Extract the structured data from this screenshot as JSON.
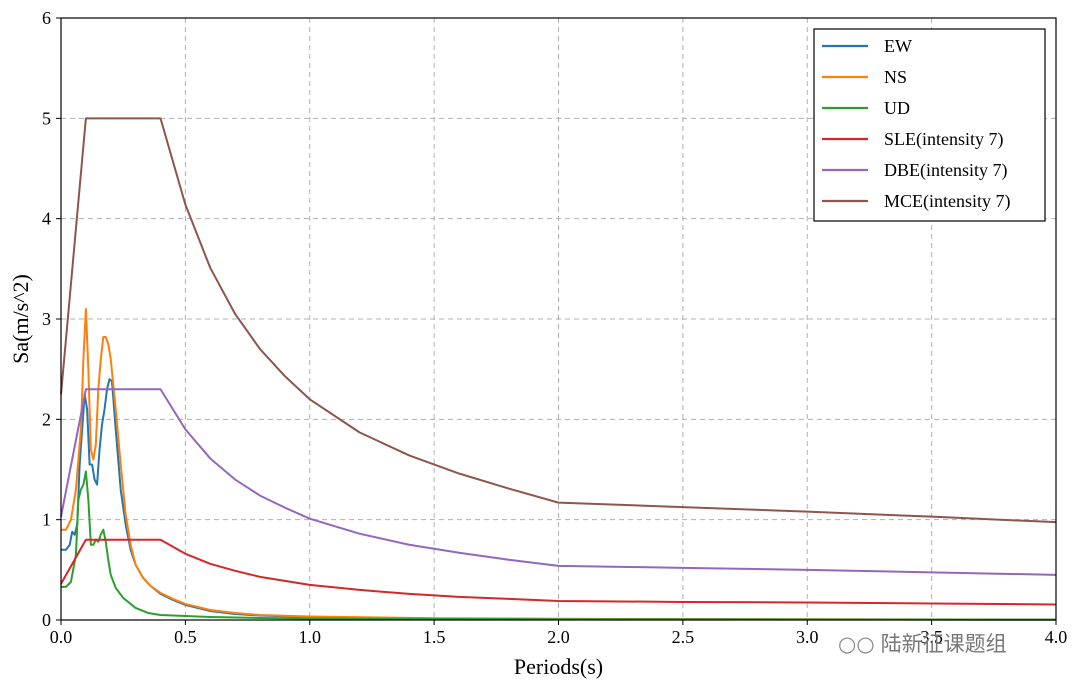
{
  "chart_data": {
    "type": "line",
    "title": "",
    "xlabel": "Periods(s)",
    "ylabel": "Sa(m/s^2)",
    "xlim": [
      0,
      4
    ],
    "ylim": [
      0,
      6
    ],
    "xticks": [
      "0.0",
      "0.5",
      "1.0",
      "1.5",
      "2.0",
      "2.5",
      "3.0",
      "3.5",
      "4.0"
    ],
    "yticks": [
      "0",
      "1",
      "2",
      "3",
      "4",
      "5",
      "6"
    ],
    "grid": true,
    "legend_position": "top-right",
    "series": [
      {
        "name": "EW",
        "color": "#1f77b4",
        "points": [
          [
            0,
            0.7
          ],
          [
            0.02,
            0.7
          ],
          [
            0.035,
            0.75
          ],
          [
            0.045,
            0.88
          ],
          [
            0.055,
            0.85
          ],
          [
            0.065,
            0.95
          ],
          [
            0.075,
            1.55
          ],
          [
            0.085,
            1.9
          ],
          [
            0.095,
            2.25
          ],
          [
            0.105,
            2.1
          ],
          [
            0.115,
            1.55
          ],
          [
            0.125,
            1.55
          ],
          [
            0.135,
            1.4
          ],
          [
            0.145,
            1.35
          ],
          [
            0.155,
            1.7
          ],
          [
            0.165,
            1.95
          ],
          [
            0.175,
            2.1
          ],
          [
            0.185,
            2.3
          ],
          [
            0.195,
            2.4
          ],
          [
            0.205,
            2.38
          ],
          [
            0.22,
            1.9
          ],
          [
            0.24,
            1.3
          ],
          [
            0.26,
            0.95
          ],
          [
            0.28,
            0.7
          ],
          [
            0.3,
            0.55
          ],
          [
            0.33,
            0.42
          ],
          [
            0.36,
            0.34
          ],
          [
            0.4,
            0.26
          ],
          [
            0.45,
            0.2
          ],
          [
            0.5,
            0.15
          ],
          [
            0.6,
            0.09
          ],
          [
            0.7,
            0.06
          ],
          [
            0.8,
            0.045
          ],
          [
            1.0,
            0.03
          ],
          [
            1.5,
            0.015
          ],
          [
            2.0,
            0.01
          ],
          [
            3.0,
            0.005
          ],
          [
            4.0,
            0.004
          ]
        ]
      },
      {
        "name": "NS",
        "color": "#ff7f0e",
        "points": [
          [
            0,
            0.9
          ],
          [
            0.02,
            0.9
          ],
          [
            0.04,
            1.0
          ],
          [
            0.06,
            1.3
          ],
          [
            0.08,
            1.9
          ],
          [
            0.09,
            2.6
          ],
          [
            0.1,
            3.1
          ],
          [
            0.11,
            2.5
          ],
          [
            0.12,
            1.7
          ],
          [
            0.13,
            1.6
          ],
          [
            0.14,
            1.75
          ],
          [
            0.15,
            2.3
          ],
          [
            0.16,
            2.6
          ],
          [
            0.17,
            2.82
          ],
          [
            0.18,
            2.82
          ],
          [
            0.19,
            2.75
          ],
          [
            0.2,
            2.6
          ],
          [
            0.22,
            2.1
          ],
          [
            0.24,
            1.55
          ],
          [
            0.26,
            1.05
          ],
          [
            0.28,
            0.75
          ],
          [
            0.3,
            0.55
          ],
          [
            0.33,
            0.42
          ],
          [
            0.36,
            0.34
          ],
          [
            0.4,
            0.27
          ],
          [
            0.45,
            0.21
          ],
          [
            0.5,
            0.16
          ],
          [
            0.6,
            0.1
          ],
          [
            0.7,
            0.07
          ],
          [
            0.8,
            0.05
          ],
          [
            1.0,
            0.035
          ],
          [
            1.5,
            0.018
          ],
          [
            2.0,
            0.012
          ],
          [
            3.0,
            0.007
          ],
          [
            4.0,
            0.005
          ]
        ]
      },
      {
        "name": "UD",
        "color": "#2ca02c",
        "points": [
          [
            0,
            0.33
          ],
          [
            0.02,
            0.33
          ],
          [
            0.04,
            0.38
          ],
          [
            0.06,
            0.65
          ],
          [
            0.07,
            1.2
          ],
          [
            0.08,
            1.3
          ],
          [
            0.09,
            1.35
          ],
          [
            0.1,
            1.48
          ],
          [
            0.11,
            1.2
          ],
          [
            0.12,
            0.75
          ],
          [
            0.13,
            0.75
          ],
          [
            0.14,
            0.8
          ],
          [
            0.15,
            0.78
          ],
          [
            0.16,
            0.85
          ],
          [
            0.17,
            0.9
          ],
          [
            0.18,
            0.78
          ],
          [
            0.19,
            0.6
          ],
          [
            0.2,
            0.45
          ],
          [
            0.22,
            0.32
          ],
          [
            0.25,
            0.22
          ],
          [
            0.3,
            0.12
          ],
          [
            0.35,
            0.07
          ],
          [
            0.4,
            0.05
          ],
          [
            0.5,
            0.04
          ],
          [
            0.6,
            0.03
          ],
          [
            0.8,
            0.02
          ],
          [
            1.0,
            0.015
          ],
          [
            2.0,
            0.008
          ],
          [
            4.0,
            0.004
          ]
        ]
      },
      {
        "name": "SLE(intensity 7)",
        "color": "#d62728",
        "points": [
          [
            0,
            0.36
          ],
          [
            0.1,
            0.8
          ],
          [
            0.4,
            0.8
          ],
          [
            0.5,
            0.66
          ],
          [
            0.6,
            0.56
          ],
          [
            0.7,
            0.49
          ],
          [
            0.8,
            0.43
          ],
          [
            0.9,
            0.39
          ],
          [
            1.0,
            0.35
          ],
          [
            1.2,
            0.3
          ],
          [
            1.4,
            0.26
          ],
          [
            1.6,
            0.23
          ],
          [
            1.8,
            0.21
          ],
          [
            2.0,
            0.19
          ],
          [
            2.5,
            0.18
          ],
          [
            3.0,
            0.175
          ],
          [
            3.5,
            0.165
          ],
          [
            4.0,
            0.155
          ]
        ]
      },
      {
        "name": "DBE(intensity 7)",
        "color": "#9467bd",
        "points": [
          [
            0,
            1.03
          ],
          [
            0.1,
            2.3
          ],
          [
            0.4,
            2.3
          ],
          [
            0.5,
            1.9
          ],
          [
            0.6,
            1.61
          ],
          [
            0.7,
            1.4
          ],
          [
            0.8,
            1.24
          ],
          [
            0.9,
            1.12
          ],
          [
            1.0,
            1.01
          ],
          [
            1.2,
            0.86
          ],
          [
            1.4,
            0.75
          ],
          [
            1.6,
            0.67
          ],
          [
            1.8,
            0.6
          ],
          [
            2.0,
            0.54
          ],
          [
            2.5,
            0.52
          ],
          [
            3.0,
            0.5
          ],
          [
            3.5,
            0.475
          ],
          [
            4.0,
            0.45
          ]
        ]
      },
      {
        "name": "MCE(intensity 7)",
        "color": "#8c564b",
        "points": [
          [
            0,
            2.25
          ],
          [
            0.1,
            5.0
          ],
          [
            0.4,
            5.0
          ],
          [
            0.5,
            4.14
          ],
          [
            0.6,
            3.51
          ],
          [
            0.7,
            3.05
          ],
          [
            0.8,
            2.7
          ],
          [
            0.9,
            2.43
          ],
          [
            1.0,
            2.2
          ],
          [
            1.2,
            1.87
          ],
          [
            1.4,
            1.64
          ],
          [
            1.6,
            1.46
          ],
          [
            1.8,
            1.31
          ],
          [
            2.0,
            1.17
          ],
          [
            2.5,
            1.125
          ],
          [
            3.0,
            1.08
          ],
          [
            3.5,
            1.03
          ],
          [
            4.0,
            0.975
          ]
        ]
      }
    ]
  },
  "watermark": {
    "icon": "wechat-icon",
    "text": "陆新征课题组"
  }
}
